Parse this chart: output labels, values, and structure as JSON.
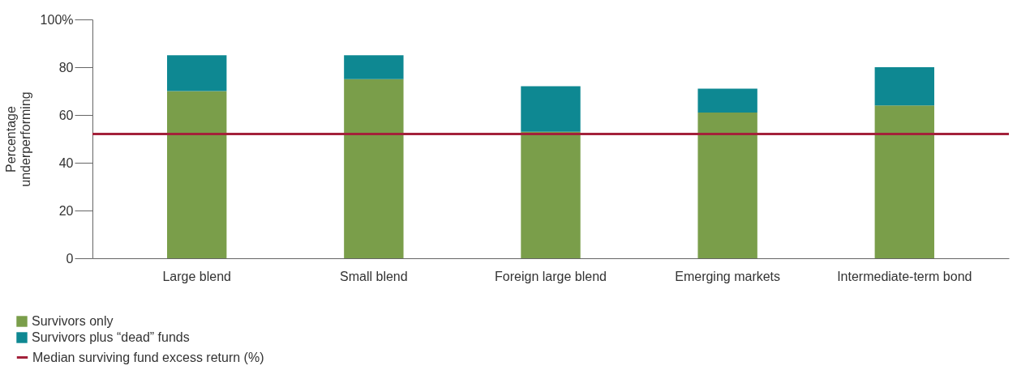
{
  "chart_data": {
    "type": "bar",
    "stacked": true,
    "ylabel": "Percentage underperforming",
    "categories": [
      "Large blend",
      "Small blend",
      "Foreign large blend",
      "Emerging markets",
      "Intermediate-term bond"
    ],
    "series": [
      {
        "name": "Survivors only",
        "color": "#7a9e4a",
        "values": [
          70,
          75,
          53,
          61,
          64
        ]
      },
      {
        "name": "Survivors plus “dead” funds",
        "color": "#0e8892",
        "values": [
          15,
          10,
          19,
          10,
          16
        ]
      }
    ],
    "ylim": [
      0,
      100
    ],
    "yticks": [
      0,
      20,
      40,
      60,
      80,
      {
        "value": 100,
        "label": "100%"
      }
    ],
    "ref_lines": [
      {
        "axis": "y",
        "value": 52,
        "label": "Median surviving fund excess return (%)",
        "color": "#a3213a"
      }
    ],
    "grid": false,
    "legend": "bottom left"
  }
}
